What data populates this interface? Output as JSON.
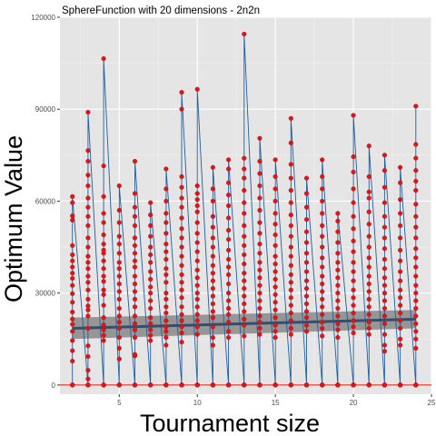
{
  "chart_data": {
    "type": "scatter",
    "title": "SphereFunction  with 20 dimensions -  2n2n",
    "xlabel": "Tournament size",
    "ylabel": "Optimum Value",
    "xlim": [
      1.2,
      25.0
    ],
    "ylim": [
      -3000,
      120000
    ],
    "x_ticks": [
      5,
      10,
      15,
      20,
      25
    ],
    "y_ticks": [
      0,
      30000,
      60000,
      90000,
      120000
    ],
    "y_tick_labels": [
      "0",
      "30000",
      "60000",
      "90000",
      "120000"
    ],
    "grid": true,
    "zero_reference_line": 0,
    "colors": {
      "panel_background": "#e5e5e5",
      "points": "#d7191c",
      "series_line": "#1f5fa0",
      "reference_line": "#ff0000",
      "trend_line": "#334e6f",
      "confidence_band": "#6b6b6b"
    },
    "trend": {
      "x": [
        2,
        24
      ],
      "y": [
        18500,
        21500
      ],
      "ci_low": [
        15000,
        18500
      ],
      "ci_high": [
        22000,
        24500
      ]
    },
    "points_by_x": [
      {
        "x": 2,
        "y": [
          0,
          0,
          0,
          0,
          7800,
          11200,
          14500,
          17500,
          19800,
          21500,
          23800,
          27000,
          29800,
          32500,
          34800,
          36500,
          38500,
          40500,
          42500,
          45500,
          53800,
          55200,
          59500,
          61500
        ]
      },
      {
        "x": 3,
        "y": [
          0,
          0,
          0,
          0,
          2000,
          4800,
          9300,
          12800,
          18500,
          22500,
          24500,
          25800,
          28000,
          31000,
          33500,
          35500,
          38000,
          40000,
          42000,
          45000,
          48000,
          52000,
          55000,
          58000,
          61000,
          65000,
          68500,
          73000,
          76500,
          89000
        ]
      },
      {
        "x": 4,
        "y": [
          0,
          0,
          0,
          0,
          0,
          14500,
          16200,
          18000,
          19600,
          22000,
          26000,
          29500,
          31000,
          33800,
          35500,
          38000,
          40500,
          43000,
          44000,
          46000,
          49000,
          53000,
          56000,
          61500,
          71500,
          106500
        ]
      },
      {
        "x": 5,
        "y": [
          0,
          0,
          0,
          0,
          0,
          0,
          8500,
          12000,
          15500,
          18500,
          20500,
          22500,
          25000,
          28000,
          30500,
          33000,
          35500,
          38000,
          40000,
          43000,
          46000,
          48500,
          53000,
          57000,
          65000
        ]
      },
      {
        "x": 6,
        "y": [
          0,
          0,
          0,
          0,
          0,
          9500,
          10000,
          15500,
          18000,
          20000,
          22500,
          25500,
          28000,
          30500,
          33000,
          35500,
          38500,
          40500,
          43000,
          45500,
          48000,
          52000,
          55000,
          58000,
          62500,
          73000
        ]
      },
      {
        "x": 7,
        "y": [
          0,
          0,
          0,
          0,
          0,
          0,
          14500,
          16200,
          18000,
          20000,
          22000,
          25000,
          27500,
          30000,
          32000,
          34500,
          37000,
          40000,
          42500,
          45000,
          48500,
          52000,
          55500,
          59500
        ]
      },
      {
        "x": 8,
        "y": [
          0,
          0,
          0,
          0,
          0,
          0,
          13000,
          15500,
          17500,
          19000,
          21000,
          23500,
          25500,
          28000,
          30000,
          33500,
          36000,
          38000,
          41000,
          43500,
          46000,
          49500,
          53000,
          56000,
          60000,
          64000,
          70500
        ]
      },
      {
        "x": 9,
        "y": [
          0,
          0,
          0,
          0,
          0,
          0,
          14000,
          17000,
          19000,
          21000,
          23000,
          25500,
          28500,
          31000,
          33500,
          36000,
          39000,
          42000,
          45000,
          48000,
          51000,
          54500,
          58000,
          61000,
          64500,
          68000,
          90000,
          95500
        ]
      },
      {
        "x": 10,
        "y": [
          0,
          0,
          0,
          0,
          0,
          0,
          16500,
          19000,
          21000,
          23000,
          25500,
          28000,
          30000,
          32500,
          35000,
          37500,
          40500,
          43500,
          46500,
          49500,
          53000,
          56500,
          58500,
          60500,
          62500,
          65000,
          96500
        ]
      },
      {
        "x": 11,
        "y": [
          0,
          0,
          0,
          0,
          0,
          0,
          13000,
          15500,
          19000,
          22000,
          24000,
          26500,
          29000,
          31500,
          34000,
          36500,
          39000,
          42000,
          45000,
          48000,
          51500,
          55000,
          60000,
          64000,
          71000
        ]
      },
      {
        "x": 12,
        "y": [
          0,
          0,
          0,
          0,
          0,
          0,
          15500,
          17500,
          20500,
          23000,
          25000,
          27500,
          30000,
          33000,
          36000,
          38500,
          41000,
          44000,
          47500,
          50500,
          54500,
          58500,
          62000,
          66000,
          70500,
          73500
        ]
      },
      {
        "x": 13,
        "y": [
          0,
          0,
          0,
          0,
          0,
          0,
          16000,
          19500,
          21500,
          24000,
          26500,
          29000,
          31500,
          34000,
          36500,
          39500,
          42500,
          45500,
          48500,
          52000,
          56000,
          59500,
          63500,
          67500,
          70500,
          74000,
          114500
        ]
      },
      {
        "x": 14,
        "y": [
          0,
          0,
          0,
          0,
          0,
          0,
          16500,
          18500,
          20500,
          22500,
          25000,
          27500,
          30000,
          32500,
          35000,
          37500,
          40000,
          43000,
          46000,
          49500,
          53000,
          57000,
          61000,
          65000,
          69000,
          73000,
          80500
        ]
      },
      {
        "x": 15,
        "y": [
          0,
          0,
          0,
          0,
          0,
          0,
          15500,
          17500,
          19500,
          22000,
          24500,
          27000,
          29500,
          32000,
          34500,
          37000,
          39500,
          42000,
          45500,
          49000,
          52500,
          56000,
          60000,
          64000,
          68000,
          73500
        ]
      },
      {
        "x": 16,
        "y": [
          0,
          0,
          0,
          0,
          0,
          0,
          16500,
          18500,
          21000,
          23500,
          26000,
          28500,
          31000,
          33500,
          36000,
          39000,
          42000,
          45000,
          48500,
          52000,
          55500,
          59500,
          63500,
          67500,
          72000,
          79000,
          87000
        ]
      },
      {
        "x": 17,
        "y": [
          0,
          0,
          0,
          0,
          0,
          0,
          17500,
          19500,
          22000,
          24000,
          26500,
          29000,
          31500,
          34000,
          37000,
          40000,
          43000,
          46500,
          50000,
          54000,
          58000,
          62500,
          67500
        ]
      },
      {
        "x": 18,
        "y": [
          0,
          0,
          0,
          0,
          0,
          0,
          16000,
          18500,
          20500,
          23000,
          25500,
          28000,
          30500,
          33000,
          35500,
          38500,
          41500,
          45000,
          48500,
          52000,
          56000,
          60000,
          64000,
          68000,
          73500
        ]
      },
      {
        "x": 19,
        "y": [
          0,
          0,
          0,
          0,
          0,
          0,
          15500,
          18000,
          20000,
          22500,
          25000,
          27500,
          30000,
          32500,
          35000,
          37500,
          40000,
          43000,
          46500,
          50000,
          53500,
          56000
        ]
      },
      {
        "x": 20,
        "y": [
          0,
          0,
          0,
          0,
          0,
          0,
          17000,
          19000,
          21000,
          23500,
          26000,
          28500,
          31000,
          34000,
          37000,
          40000,
          43500,
          47000,
          51000,
          55000,
          59500,
          64000,
          69500,
          74500,
          88000
        ]
      },
      {
        "x": 21,
        "y": [
          0,
          0,
          0,
          0,
          0,
          0,
          16500,
          18500,
          20500,
          23000,
          25500,
          28000,
          30500,
          33000,
          35500,
          38500,
          41500,
          45000,
          48500,
          52500,
          56500,
          61000,
          63000,
          68000,
          78000
        ]
      },
      {
        "x": 22,
        "y": [
          0,
          0,
          0,
          0,
          0,
          0,
          11000,
          13000,
          16500,
          20000,
          22500,
          25000,
          27500,
          30000,
          32500,
          35000,
          38000,
          41000,
          44500,
          48000,
          51500,
          55000,
          59500,
          64500,
          70000,
          75000
        ]
      },
      {
        "x": 23,
        "y": [
          0,
          0,
          0,
          0,
          0,
          0,
          13000,
          15000,
          18500,
          21000,
          23500,
          26000,
          28500,
          31000,
          34000,
          37000,
          40500,
          44000,
          48000,
          52000,
          56000,
          60500,
          66000,
          71000
        ]
      },
      {
        "x": 24,
        "y": [
          0,
          0,
          0,
          0,
          0,
          0,
          12000,
          15000,
          17500,
          20000,
          22500,
          25000,
          27500,
          30000,
          32500,
          35500,
          38500,
          41500,
          44500,
          48000,
          51500,
          55000,
          59000,
          63500,
          66500,
          70000,
          74000,
          78500,
          91000
        ]
      }
    ]
  }
}
